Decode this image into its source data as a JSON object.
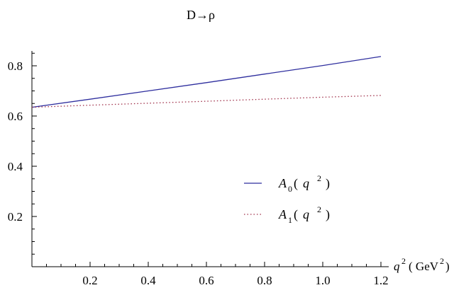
{
  "chart_data": {
    "type": "line",
    "title": "D→ρ",
    "xlabel": "q²( GeV²)",
    "ylabel": "",
    "xlim": [
      0,
      1.2
    ],
    "ylim": [
      0,
      0.85
    ],
    "x_ticks": [
      "0.2",
      "0.4",
      "0.6",
      "0.8",
      "1.0",
      "1.2"
    ],
    "y_ticks": [
      "0.2",
      "0.4",
      "0.6",
      "0.8"
    ],
    "legend_position": "center-right",
    "series": [
      {
        "name": "A₀( q²)",
        "color": "#2e2e9e",
        "dash": "solid",
        "x": [
          0,
          0.2,
          0.4,
          0.6,
          0.8,
          1.0,
          1.2
        ],
        "values": [
          0.635,
          0.667,
          0.7,
          0.733,
          0.767,
          0.801,
          0.837
        ]
      },
      {
        "name": "A₁( q²)",
        "color": "#a0304a",
        "dash": "dotted",
        "x": [
          0,
          0.2,
          0.4,
          0.6,
          0.8,
          1.0,
          1.2
        ],
        "values": [
          0.635,
          0.643,
          0.651,
          0.659,
          0.667,
          0.675,
          0.682
        ]
      }
    ]
  }
}
